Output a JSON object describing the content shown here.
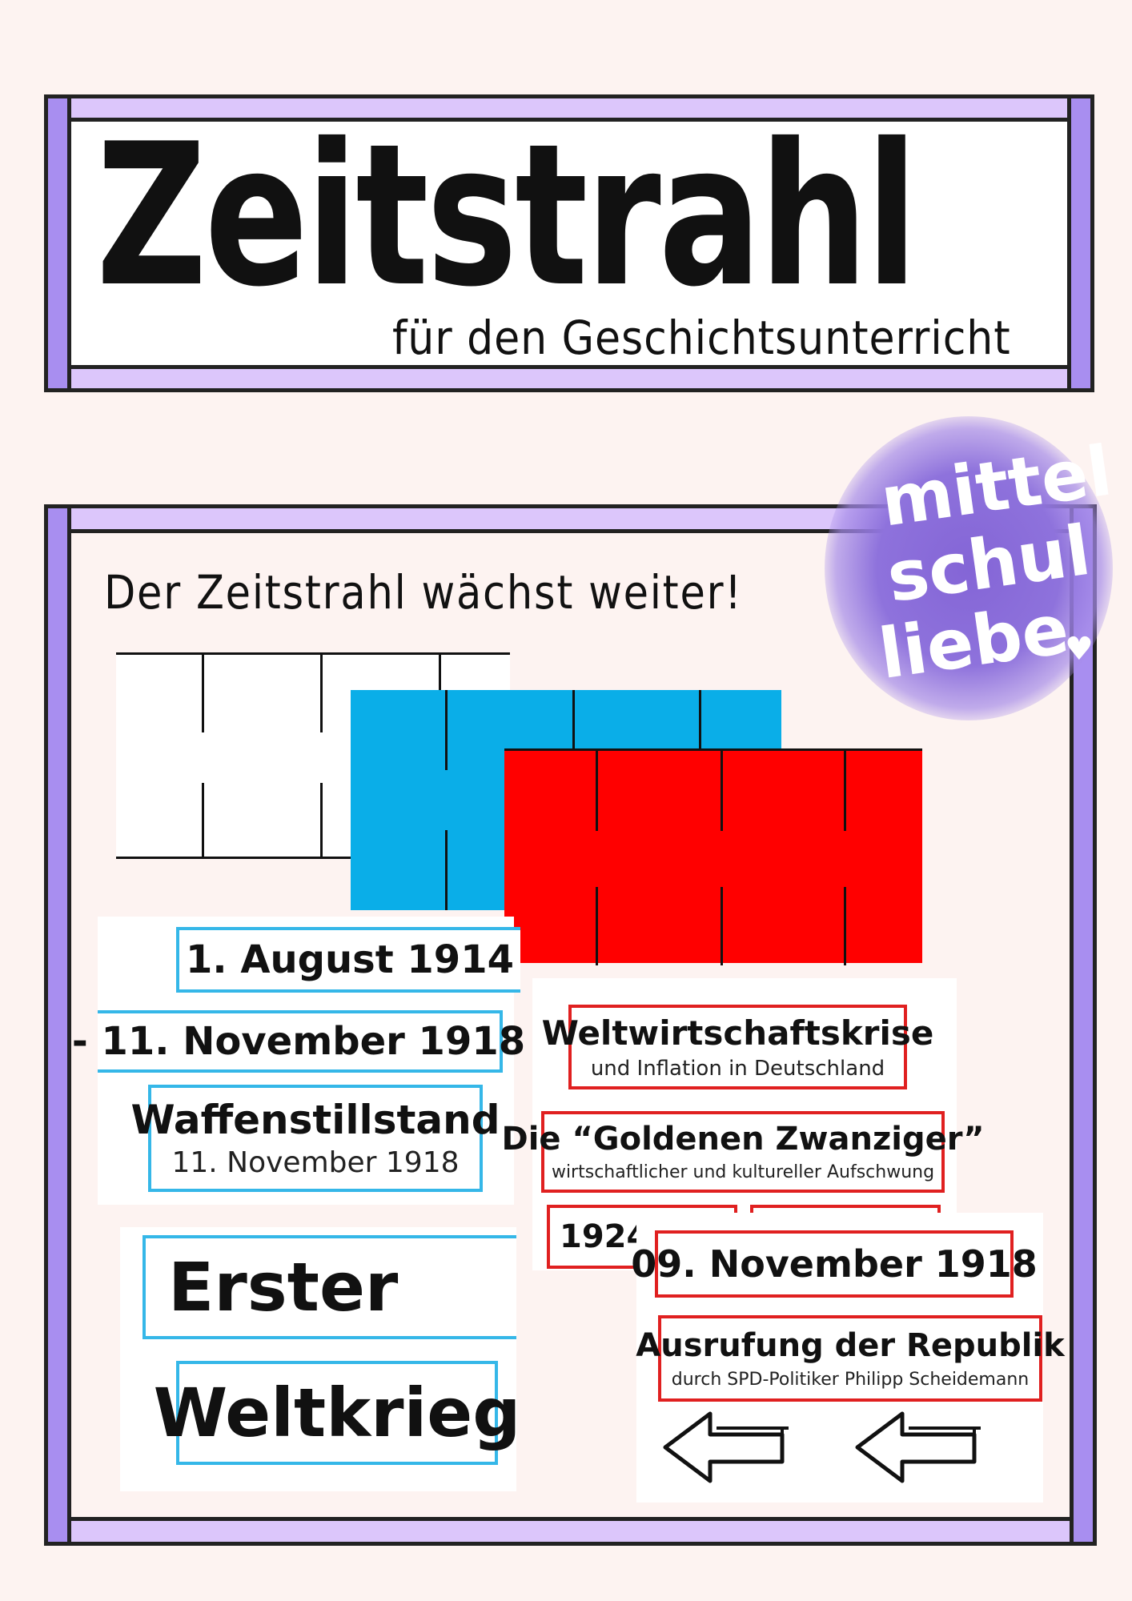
{
  "header": {
    "title": "Zeitstrahl",
    "subtitle": "für den Geschichtsunterricht"
  },
  "main": {
    "heading": "Der Zeitstrahl wächst weiter!"
  },
  "logo": {
    "line1": "mittel",
    "line2": "schul",
    "line3": "liebe"
  },
  "cards": {
    "wwi_start": "1. August 1914",
    "wwi_end": "- 11. November 1918",
    "armistice_title": "Waffenstillstand",
    "armistice_date": "11. November 1918",
    "wwi_label_1": "Erster",
    "wwi_label_2": "Weltkrieg",
    "crisis_title": "Weltwirtschaftskrise",
    "crisis_sub": "und Inflation in Deutschland",
    "twenties_title": "Die “Goldenen Zwanziger”",
    "twenties_sub": "wirtschaftlicher und kultureller Aufschwung",
    "partial_year": "1924",
    "republic_date": "09. November 1918",
    "republic_title": "Ausrufung der Republik",
    "republic_sub": "durch SPD-Politiker Philipp Scheidemann"
  },
  "colors": {
    "frame_light": "#dcc6fb",
    "frame_dark": "#a88ef0",
    "background": "#fdf3f1",
    "block_white": "#ffffff",
    "block_blue": "#0aaee8",
    "block_red": "#ff0000",
    "card_blue": "#35b7e8",
    "card_red": "#e02020"
  },
  "icons": [
    "left-arrow-icon",
    "left-arrow-icon"
  ]
}
